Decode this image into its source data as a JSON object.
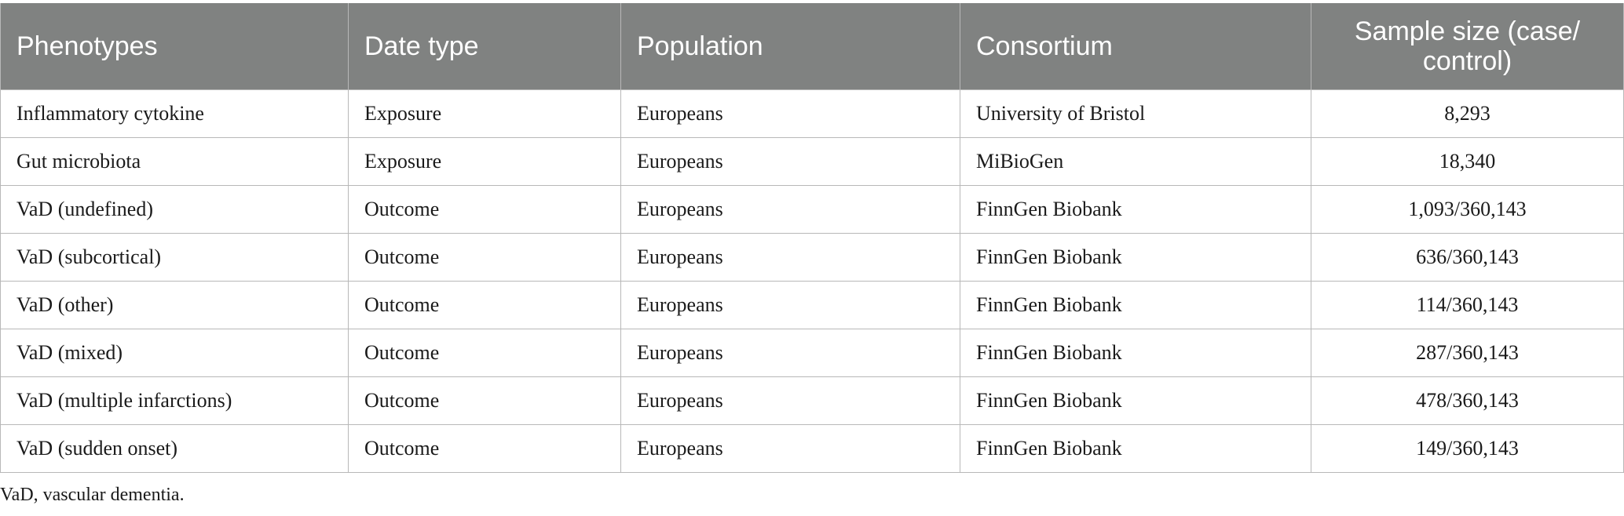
{
  "table": {
    "headers": [
      "Phenotypes",
      "Date type",
      "Population",
      "Consortium",
      "Sample size (case/\ncontrol)"
    ],
    "header_fill": "#808281",
    "rows": [
      [
        "Inflammatory cytokine",
        "Exposure",
        "Europeans",
        "University of Bristol",
        "8,293"
      ],
      [
        "Gut microbiota",
        "Exposure",
        "Europeans",
        "MiBioGen",
        "18,340"
      ],
      [
        "VaD (undefined)",
        "Outcome",
        "Europeans",
        "FinnGen Biobank",
        "1,093/360,143"
      ],
      [
        "VaD (subcortical)",
        "Outcome",
        "Europeans",
        "FinnGen Biobank",
        "636/360,143"
      ],
      [
        "VaD (other)",
        "Outcome",
        "Europeans",
        "FinnGen Biobank",
        "114/360,143"
      ],
      [
        "VaD (mixed)",
        "Outcome",
        "Europeans",
        "FinnGen Biobank",
        "287/360,143"
      ],
      [
        "VaD (multiple infarctions)",
        "Outcome",
        "Europeans",
        "FinnGen Biobank",
        "478/360,143"
      ],
      [
        "VaD (sudden onset)",
        "Outcome",
        "Europeans",
        "FinnGen Biobank",
        "149/360,143"
      ]
    ]
  },
  "footnote": "VaD, vascular dementia."
}
